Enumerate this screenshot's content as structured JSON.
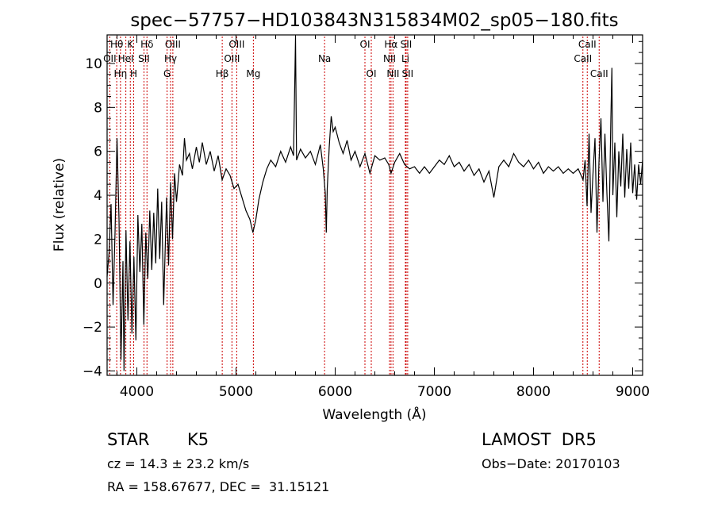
{
  "chart_data": {
    "type": "line",
    "title": "spec−57757−HD103843N315834M02_sp05−180.fits",
    "xlabel": "Wavelength (Å)",
    "ylabel": "Flux (relative)",
    "xlim": [
      3700,
      9100
    ],
    "ylim": [
      -4.2,
      11.3
    ],
    "x_ticks": [
      4000,
      5000,
      6000,
      7000,
      8000,
      9000
    ],
    "y_ticks": [
      -4,
      -2,
      0,
      2,
      4,
      6,
      8,
      10
    ],
    "grid": false,
    "series": [
      {
        "points": [
          [
            3700,
            0.3
          ],
          [
            3720,
            1.4
          ],
          [
            3740,
            3.6
          ],
          [
            3760,
            -1.0
          ],
          [
            3780,
            2.3
          ],
          [
            3800,
            6.6
          ],
          [
            3820,
            2.9
          ],
          [
            3840,
            -3.5
          ],
          [
            3860,
            1.0
          ],
          [
            3870,
            -4.0
          ],
          [
            3890,
            2.4
          ],
          [
            3910,
            -1.7
          ],
          [
            3930,
            1.9
          ],
          [
            3950,
            -2.3
          ],
          [
            3970,
            1.2
          ],
          [
            3990,
            -2.6
          ],
          [
            4010,
            3.1
          ],
          [
            4030,
            0.5
          ],
          [
            4050,
            2.7
          ],
          [
            4070,
            -1.9
          ],
          [
            4090,
            2.3
          ],
          [
            4110,
            0.2
          ],
          [
            4130,
            3.3
          ],
          [
            4150,
            0.6
          ],
          [
            4170,
            3.2
          ],
          [
            4190,
            0.9
          ],
          [
            4210,
            4.3
          ],
          [
            4230,
            1.1
          ],
          [
            4250,
            3.7
          ],
          [
            4270,
            -1.0
          ],
          [
            4300,
            3.9
          ],
          [
            4320,
            0.8
          ],
          [
            4340,
            4.6
          ],
          [
            4360,
            2.0
          ],
          [
            4380,
            5.0
          ],
          [
            4400,
            3.7
          ],
          [
            4430,
            5.4
          ],
          [
            4460,
            4.9
          ],
          [
            4480,
            6.6
          ],
          [
            4500,
            5.6
          ],
          [
            4530,
            5.9
          ],
          [
            4560,
            5.2
          ],
          [
            4600,
            6.2
          ],
          [
            4630,
            5.5
          ],
          [
            4660,
            6.4
          ],
          [
            4700,
            5.4
          ],
          [
            4740,
            6.0
          ],
          [
            4780,
            5.1
          ],
          [
            4820,
            5.8
          ],
          [
            4860,
            4.7
          ],
          [
            4900,
            5.2
          ],
          [
            4940,
            4.9
          ],
          [
            4980,
            4.3
          ],
          [
            5020,
            4.5
          ],
          [
            5060,
            3.9
          ],
          [
            5100,
            3.3
          ],
          [
            5140,
            2.9
          ],
          [
            5170,
            2.3
          ],
          [
            5200,
            2.9
          ],
          [
            5230,
            3.8
          ],
          [
            5270,
            4.6
          ],
          [
            5310,
            5.2
          ],
          [
            5350,
            5.6
          ],
          [
            5400,
            5.3
          ],
          [
            5450,
            6.0
          ],
          [
            5500,
            5.5
          ],
          [
            5550,
            6.2
          ],
          [
            5580,
            5.8
          ],
          [
            5600,
            11.2
          ],
          [
            5610,
            5.6
          ],
          [
            5650,
            6.1
          ],
          [
            5700,
            5.7
          ],
          [
            5750,
            6.0
          ],
          [
            5800,
            5.4
          ],
          [
            5850,
            6.3
          ],
          [
            5880,
            5.2
          ],
          [
            5900,
            4.1
          ],
          [
            5910,
            2.3
          ],
          [
            5920,
            4.3
          ],
          [
            5940,
            6.2
          ],
          [
            5960,
            7.6
          ],
          [
            5980,
            6.9
          ],
          [
            6000,
            7.1
          ],
          [
            6040,
            6.4
          ],
          [
            6080,
            5.9
          ],
          [
            6120,
            6.5
          ],
          [
            6160,
            5.6
          ],
          [
            6200,
            6.0
          ],
          [
            6250,
            5.3
          ],
          [
            6300,
            5.9
          ],
          [
            6350,
            5.0
          ],
          [
            6400,
            5.8
          ],
          [
            6450,
            5.6
          ],
          [
            6500,
            5.7
          ],
          [
            6540,
            5.4
          ],
          [
            6563,
            5.0
          ],
          [
            6600,
            5.5
          ],
          [
            6650,
            5.9
          ],
          [
            6700,
            5.4
          ],
          [
            6750,
            5.2
          ],
          [
            6800,
            5.3
          ],
          [
            6850,
            5.0
          ],
          [
            6900,
            5.3
          ],
          [
            6950,
            5.0
          ],
          [
            7000,
            5.3
          ],
          [
            7050,
            5.6
          ],
          [
            7100,
            5.4
          ],
          [
            7150,
            5.8
          ],
          [
            7200,
            5.3
          ],
          [
            7250,
            5.5
          ],
          [
            7300,
            5.1
          ],
          [
            7350,
            5.4
          ],
          [
            7400,
            4.9
          ],
          [
            7450,
            5.2
          ],
          [
            7500,
            4.6
          ],
          [
            7550,
            5.1
          ],
          [
            7600,
            3.9
          ],
          [
            7650,
            5.3
          ],
          [
            7700,
            5.6
          ],
          [
            7750,
            5.3
          ],
          [
            7800,
            5.9
          ],
          [
            7850,
            5.5
          ],
          [
            7900,
            5.3
          ],
          [
            7950,
            5.6
          ],
          [
            8000,
            5.2
          ],
          [
            8050,
            5.5
          ],
          [
            8100,
            5.0
          ],
          [
            8150,
            5.3
          ],
          [
            8200,
            5.1
          ],
          [
            8250,
            5.3
          ],
          [
            8300,
            5.0
          ],
          [
            8350,
            5.2
          ],
          [
            8400,
            5.0
          ],
          [
            8450,
            5.2
          ],
          [
            8500,
            4.7
          ],
          [
            8520,
            5.6
          ],
          [
            8540,
            3.5
          ],
          [
            8560,
            6.8
          ],
          [
            8580,
            3.2
          ],
          [
            8600,
            5.0
          ],
          [
            8620,
            6.6
          ],
          [
            8640,
            2.3
          ],
          [
            8660,
            5.5
          ],
          [
            8680,
            7.5
          ],
          [
            8700,
            3.7
          ],
          [
            8720,
            6.8
          ],
          [
            8740,
            4.1
          ],
          [
            8760,
            1.9
          ],
          [
            8780,
            7.5
          ],
          [
            8790,
            9.8
          ],
          [
            8800,
            4.0
          ],
          [
            8820,
            6.4
          ],
          [
            8840,
            3.0
          ],
          [
            8860,
            6.0
          ],
          [
            8880,
            4.4
          ],
          [
            8900,
            6.8
          ],
          [
            8920,
            3.9
          ],
          [
            8940,
            6.1
          ],
          [
            8960,
            4.3
          ],
          [
            8980,
            6.4
          ],
          [
            9000,
            4.1
          ],
          [
            9020,
            5.4
          ],
          [
            9040,
            3.8
          ],
          [
            9060,
            5.4
          ],
          [
            9080,
            4.5
          ],
          [
            9100,
            5.6
          ]
        ]
      }
    ],
    "spectral_lines": [
      {
        "label": "Hθ",
        "x": 3797,
        "row": 0
      },
      {
        "label": "OII",
        "x": 3727,
        "row": 1
      },
      {
        "label": "Hη",
        "x": 3835,
        "row": 2
      },
      {
        "label": "K",
        "x": 3934,
        "row": 0
      },
      {
        "label": "HeI",
        "x": 3889,
        "row": 1
      },
      {
        "label": "H",
        "x": 3968,
        "row": 2
      },
      {
        "label": "Hδ",
        "x": 4102,
        "row": 0
      },
      {
        "label": "SII",
        "x": 4072,
        "row": 1
      },
      {
        "label": "OIII",
        "x": 4363,
        "row": 0
      },
      {
        "label": "Hγ",
        "x": 4340,
        "row": 1
      },
      {
        "label": "G",
        "x": 4305,
        "row": 2
      },
      {
        "label": "Hβ",
        "x": 4861,
        "row": 2
      },
      {
        "label": "OIII",
        "x": 5007,
        "row": 0
      },
      {
        "label": "OIII",
        "x": 4959,
        "row": 1
      },
      {
        "label": "Mg",
        "x": 5175,
        "row": 2
      },
      {
        "label": "Na",
        "x": 5893,
        "row": 1
      },
      {
        "label": "OI",
        "x": 6300,
        "row": 0
      },
      {
        "label": "OI",
        "x": 6364,
        "row": 2
      },
      {
        "label": "Hα",
        "x": 6563,
        "row": 0
      },
      {
        "label": "NII",
        "x": 6548,
        "row": 1
      },
      {
        "label": "NII",
        "x": 6583,
        "row": 2
      },
      {
        "label": "SII",
        "x": 6716,
        "row": 0
      },
      {
        "label": "Li",
        "x": 6708,
        "row": 1
      },
      {
        "label": "SII",
        "x": 6731,
        "row": 2
      },
      {
        "label": "CaII",
        "x": 8542,
        "row": 0
      },
      {
        "label": "CaII",
        "x": 8498,
        "row": 1
      },
      {
        "label": "CaII",
        "x": 8662,
        "row": 2
      }
    ],
    "line_color": "#000000",
    "marker_line_color": "#cc0000"
  },
  "info": {
    "object_class": "STAR",
    "subclass": "K5",
    "survey": "LAMOST  DR5",
    "redshift": "cz = 14.3 ± 23.2 km/s",
    "obs_date": "Obs−Date: 20170103",
    "coords": "RA = 158.67677, DEC =  31.15121"
  }
}
